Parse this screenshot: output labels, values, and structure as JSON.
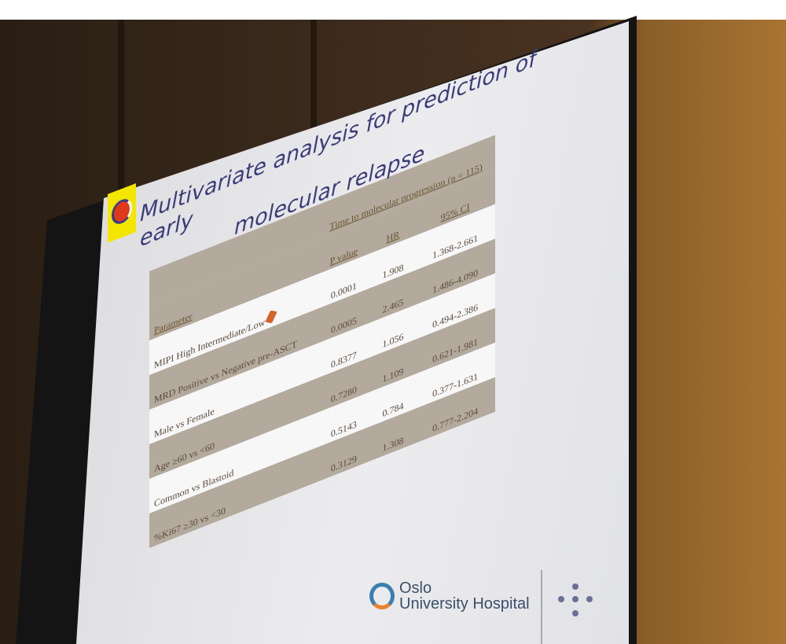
{
  "slide": {
    "title_line1": "Multivariate analysis for prediction of early",
    "title_line2": "molecular relapse",
    "table": {
      "group_header": "Time to molecular progression (n = 115)",
      "columns": [
        "Parameter",
        "P value",
        "HR",
        "95% CI"
      ],
      "rows": [
        {
          "parameter": "MIPI High Intermediate/Low",
          "p_value": "0.0001",
          "hr": "1.908",
          "ci": "1.368-2.661"
        },
        {
          "parameter": "MRD Positive vs Negative pre-ASCT",
          "p_value": "0.0005",
          "hr": "2.465",
          "ci": "1.486-4.090"
        },
        {
          "parameter": "Male vs Female",
          "p_value": "0.8377",
          "hr": "1.056",
          "ci": "0.494-2.386"
        },
        {
          "parameter": "Age ≥60 vs <60",
          "p_value": "0.7280",
          "hr": "1.109",
          "ci": "0.621-1.981"
        },
        {
          "parameter": "Common vs Blastoid",
          "p_value": "0.5143",
          "hr": "0.784",
          "ci": "0.377-1.631"
        },
        {
          "parameter": "%Ki67 ≥30 vs <30",
          "p_value": "0.3129",
          "hr": "1.308",
          "ci": "0.777-2.204"
        }
      ]
    },
    "footer_brand_line1": "Oslo",
    "footer_brand_line2": "University Hospital"
  },
  "colors": {
    "title": "#3b3b7a",
    "row_dark": "#b3aa9d",
    "row_light": "#f7f7f8",
    "wall": "#a87432"
  }
}
